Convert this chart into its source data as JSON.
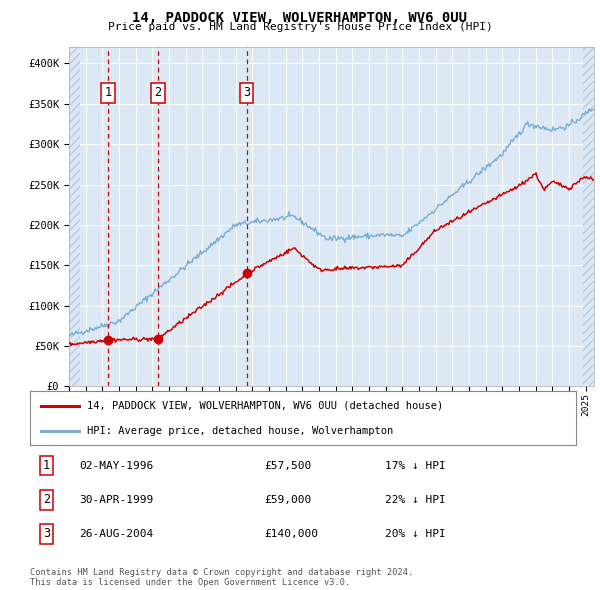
{
  "title": "14, PADDOCK VIEW, WOLVERHAMPTON, WV6 0UU",
  "subtitle": "Price paid vs. HM Land Registry's House Price Index (HPI)",
  "footer": "Contains HM Land Registry data © Crown copyright and database right 2024.\nThis data is licensed under the Open Government Licence v3.0.",
  "legend_label_red": "14, PADDOCK VIEW, WOLVERHAMPTON, WV6 0UU (detached house)",
  "legend_label_blue": "HPI: Average price, detached house, Wolverhampton",
  "sale_points": [
    {
      "label": "1",
      "date": "02-MAY-1996",
      "year": 1996.33,
      "price": 57500,
      "hpi_pct": "17% ↓ HPI"
    },
    {
      "label": "2",
      "date": "30-APR-1999",
      "year": 1999.33,
      "price": 59000,
      "hpi_pct": "22% ↓ HPI"
    },
    {
      "label": "3",
      "date": "26-AUG-2004",
      "year": 2004.65,
      "price": 140000,
      "hpi_pct": "20% ↓ HPI"
    }
  ],
  "ylim": [
    0,
    420000
  ],
  "xlim_start": 1994.0,
  "xlim_end": 2025.5,
  "plot_bg_color": "#dce9f5",
  "hatch_color": "#b8cfe0",
  "grid_color": "#ffffff",
  "red_line_color": "#cc0000",
  "blue_line_color": "#7aadd4",
  "dashed_line_color": "#cc0000",
  "sale_marker_color": "#cc0000",
  "box_edge_color": "#cc0000"
}
